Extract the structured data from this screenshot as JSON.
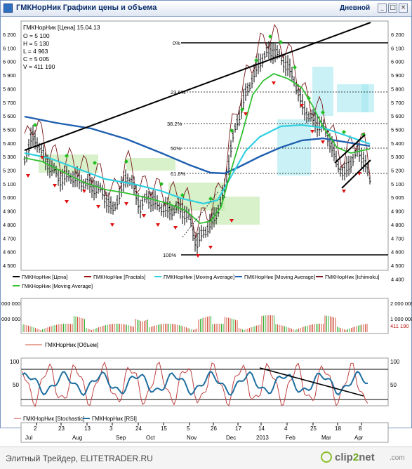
{
  "window": {
    "title": "ГМКНорНик Графики цены и объема",
    "period": "Дневной",
    "buttons": [
      "_",
      "□",
      "×"
    ]
  },
  "price_panel": {
    "header": "ГМКНорНик [Цена] 15.04.13",
    "ohlcv": [
      "O = 5 100",
      "H = 5 130",
      "L = 4 963",
      "C = 5 005",
      "V = 411 190"
    ],
    "y_ticks": [
      "6 200",
      "6 100",
      "6 000",
      "5 900",
      "5 800",
      "5 700",
      "5 600",
      "5 500",
      "5 400",
      "5 300",
      "5 200",
      "5 100",
      "5 000",
      "4 900",
      "4 800",
      "4 700",
      "4 600",
      "4 500"
    ],
    "y_ticks_right": [
      "6 200",
      "6 100",
      "6 000",
      "5 900",
      "5 800",
      "5 700",
      "5 600",
      "5 500",
      "5 400",
      "5 300",
      "5 200",
      "5 100",
      "5 005",
      "4 900",
      "4 800",
      "4 700",
      "4 600",
      "4 500",
      "4 400"
    ],
    "fib_levels": [
      "0%",
      "23.6%",
      "38.2%",
      "50%",
      "61.8%",
      "100%"
    ],
    "legend": [
      {
        "label": "ГМКНорНик [Цена]",
        "color": "#000000"
      },
      {
        "label": "ГМКНорНик [Fractals]",
        "color": "#a01010"
      },
      {
        "label": "ГМКНорНик [Moving Average]",
        "color": "#2fd0e0"
      },
      {
        "label": "ГМКНорНик [Moving Average]",
        "color": "#1f5fb0"
      },
      {
        "label": "ГМКНорНик [Ichimoku]",
        "color": "#7a1a1a"
      },
      {
        "label": "ГМКНорНик [Moving Average]",
        "color": "#30c030"
      }
    ]
  },
  "volume_panel": {
    "left_ticks": [
      "000 000",
      "000 000"
    ],
    "right_ticks": [
      "2 000 000",
      "1 000 000"
    ],
    "last_value": "411 190",
    "legend": "ГМКНорНик [Объем]"
  },
  "osc_panel": {
    "left_ticks": [
      "100",
      "50"
    ],
    "right_ticks": [
      "100",
      "50"
    ],
    "legend": [
      "ГМКНорНик [Stochastic]",
      "ГМКНорНик [RSI]"
    ]
  },
  "x_axis": {
    "days": [
      "2",
      "23",
      "13",
      "3",
      "24",
      "15",
      "5",
      "26",
      "17",
      "14",
      "4",
      "25",
      "18",
      "8"
    ],
    "months": [
      "Jul",
      "Aug",
      "Sep",
      "Oct",
      "Nov",
      "Dec",
      "2013",
      "Feb",
      "Mar",
      "Apr"
    ]
  },
  "footer": {
    "text": "Элитный Трейдер, ELITETRADER.RU",
    "logo_main": "clip",
    "logo_accent": "2",
    "logo_rest": "net",
    "logo_suffix": ".com"
  },
  "colors": {
    "price": "#000000",
    "fractals": "#e01010",
    "fractals_up": "#20c020",
    "ma_fast": "#2fd0e0",
    "ma_slow": "#1f5fb0",
    "ma_green": "#30c030",
    "ichimoku": "#7a1a1a",
    "stochastic": "#c04040",
    "rsi": "#1f6fa0",
    "volume": "#d0503a"
  }
}
